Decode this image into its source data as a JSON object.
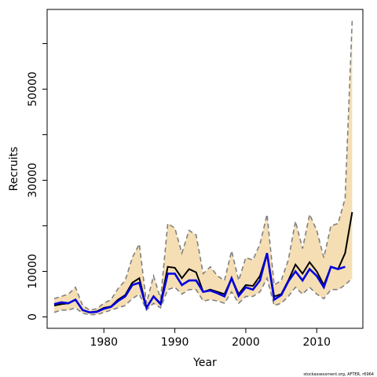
{
  "chart_data": {
    "type": "line",
    "xlabel": "Year",
    "ylabel": "Recruits",
    "xlim": [
      1972,
      2016.5
    ],
    "ylim": [
      -2500,
      67500
    ],
    "xticks": [
      1980,
      1990,
      2000,
      2010
    ],
    "yticks": [
      0,
      10000,
      30000,
      50000
    ],
    "ytick_minor": [
      20000,
      40000,
      60000
    ],
    "grid": false,
    "legend": "none",
    "footnote": "stockassessment.org, AFTER, r6964",
    "colors": {
      "band": "#f5deb3",
      "bounds": "#808080",
      "black_line": "#000000",
      "blue_line": "#0000dd"
    },
    "x": [
      1973,
      1974,
      1975,
      1976,
      1977,
      1978,
      1979,
      1980,
      1981,
      1982,
      1983,
      1984,
      1985,
      1986,
      1987,
      1988,
      1989,
      1990,
      1991,
      1992,
      1993,
      1994,
      1995,
      1996,
      1997,
      1998,
      1999,
      2000,
      2001,
      2002,
      2003,
      2004,
      2005,
      2006,
      2007,
      2008,
      2009,
      2010,
      2011,
      2012,
      2013,
      2014,
      2015
    ],
    "series": [
      {
        "values": [
          2500,
          2800,
          3000,
          3800,
          1500,
          1000,
          1200,
          2000,
          2300,
          3800,
          4800,
          7500,
          8500,
          2000,
          4500,
          3000,
          11000,
          10800,
          8500,
          10500,
          9800,
          5500,
          6000,
          5500,
          5000,
          8500,
          5000,
          7000,
          6800,
          9000,
          14000,
          4500,
          5000,
          8000,
          11500,
          9500,
          12000,
          10000,
          7000,
          11000,
          10500,
          14000,
          23000
        ]
      },
      {
        "values": [
          2800,
          3200,
          3000,
          3800,
          1500,
          1000,
          1100,
          1800,
          2200,
          3500,
          4500,
          7000,
          7500,
          2000,
          4500,
          2800,
          9500,
          9500,
          7000,
          8000,
          8000,
          5500,
          5800,
          5200,
          4500,
          8500,
          4600,
          6500,
          6000,
          8000,
          14000,
          3800,
          4800,
          7800,
          10000,
          8000,
          10500,
          9000,
          6500,
          11000,
          10500,
          11000,
          null
        ]
      }
    ],
    "band": {
      "upper": [
        4000,
        4500,
        5000,
        6500,
        2500,
        1500,
        1800,
        3000,
        3800,
        6200,
        8000,
        13000,
        16000,
        3000,
        9000,
        4000,
        20500,
        19500,
        14000,
        19000,
        18000,
        9500,
        11000,
        9000,
        8000,
        14500,
        8000,
        13000,
        12500,
        16000,
        22500,
        7000,
        8000,
        12500,
        21000,
        15000,
        22500,
        19000,
        13000,
        20000,
        20500,
        26000,
        65000
      ],
      "lower": [
        1000,
        1500,
        1500,
        2000,
        800,
        500,
        500,
        1000,
        1500,
        2000,
        2500,
        4000,
        5000,
        1500,
        3000,
        2000,
        6000,
        6500,
        5000,
        6000,
        6000,
        3500,
        3800,
        3500,
        3000,
        5500,
        3000,
        4500,
        4500,
        5500,
        8500,
        2500,
        3000,
        4500,
        6500,
        5000,
        6500,
        5000,
        4000,
        6000,
        6000,
        7000,
        8500
      ]
    }
  }
}
